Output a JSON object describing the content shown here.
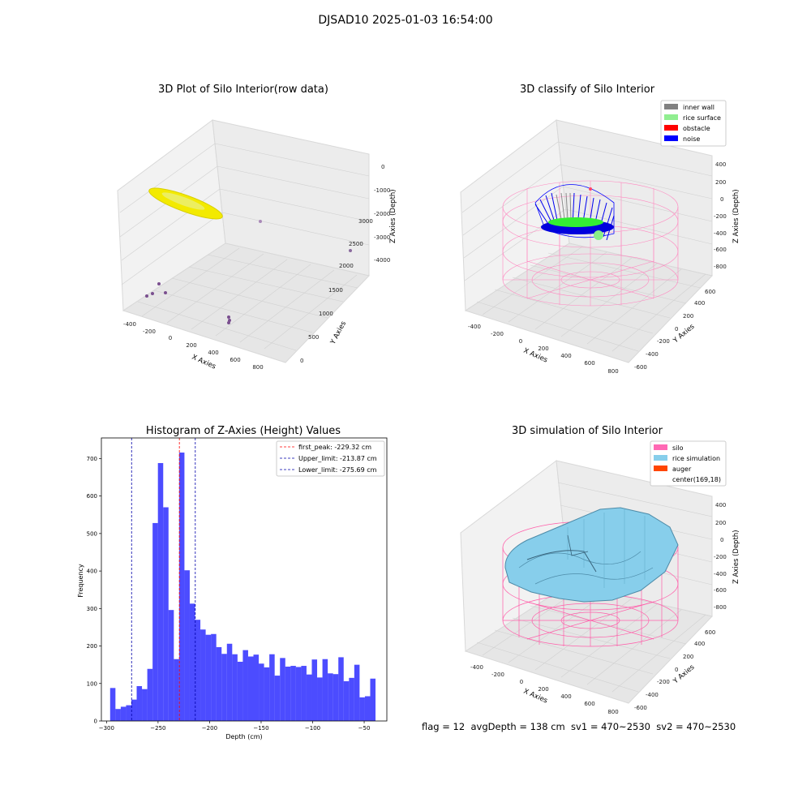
{
  "suptitle": "DJSAD10 2025-01-03 16:54:00",
  "footer": "flag = 12  avgDepth = 138 cm  sv1 = 470~2530  sv2 = 470~2530",
  "plots": {
    "raw": {
      "title": "3D Plot of Silo Interior(row data)",
      "xlabel": "X Axies",
      "ylabel": "Y Axies",
      "zlabel": "Z Axies (Depth)",
      "xticks": [
        "-400",
        "-200",
        "0",
        "200",
        "400",
        "600",
        "800"
      ],
      "yticks": [
        "0",
        "500",
        "1000",
        "1500",
        "2000",
        "2500",
        "3000"
      ],
      "zticks": [
        "0",
        "-1000",
        "-2000",
        "-3000",
        "-4000"
      ]
    },
    "classify": {
      "title": "3D classify of Silo Interior",
      "xlabel": "X Axies",
      "ylabel": "Y Axies",
      "zlabel": "Z Axies (Depth)",
      "xticks": [
        "-400",
        "-200",
        "0",
        "200",
        "400",
        "600",
        "800"
      ],
      "yticks": [
        "-600",
        "-400",
        "-200",
        "0",
        "200",
        "400",
        "600"
      ],
      "zticks": [
        "400",
        "200",
        "0",
        "-200",
        "-400",
        "-600",
        "-800"
      ],
      "legend": [
        {
          "label": "inner wall",
          "color": "#808080"
        },
        {
          "label": "rice surface",
          "color": "#90ee90"
        },
        {
          "label": "obstacle",
          "color": "#ff0000"
        },
        {
          "label": "noise",
          "color": "#0000ff"
        }
      ]
    },
    "simulation": {
      "title": "3D simulation of Silo Interior",
      "xlabel": "X Axies",
      "ylabel": "Y Axies",
      "zlabel": "Z Axies (Depth)",
      "xticks": [
        "-400",
        "-200",
        "0",
        "200",
        "400",
        "600",
        "800"
      ],
      "yticks": [
        "-600",
        "-400",
        "-200",
        "0",
        "200",
        "400",
        "600"
      ],
      "zticks": [
        "400",
        "200",
        "0",
        "-200",
        "-400",
        "-600",
        "-800"
      ],
      "legend": [
        {
          "label": "silo",
          "color": "#ff69b4"
        },
        {
          "label": "rice simulation",
          "color": "#87ceeb"
        },
        {
          "label": "auger",
          "color": "#ff4500"
        },
        {
          "label": "center(169,18)",
          "color": "none"
        }
      ]
    }
  },
  "chart_data": {
    "type": "bar",
    "title": "Histogram of Z-Axies (Height) Values",
    "xlabel": "Depth (cm)",
    "ylabel": "Frequency",
    "xlim": [
      -305,
      -28
    ],
    "ylim": [
      0,
      755
    ],
    "xticks": [
      -300,
      -250,
      -200,
      -150,
      -100,
      -50
    ],
    "yticks": [
      0,
      100,
      200,
      300,
      400,
      500,
      600,
      700
    ],
    "bar_color": "#0000ff",
    "bin_start": -296.5,
    "bin_width": 5.15,
    "values": [
      88,
      32,
      38,
      42,
      57,
      93,
      85,
      139,
      528,
      688,
      570,
      296,
      165,
      716,
      402,
      313,
      270,
      244,
      230,
      232,
      197,
      179,
      206,
      178,
      158,
      189,
      172,
      177,
      153,
      143,
      178,
      121,
      168,
      145,
      147,
      144,
      147,
      124,
      164,
      116,
      165,
      127,
      125,
      170,
      106,
      115,
      150,
      63,
      66,
      113
    ],
    "lines": [
      {
        "x": -229.32,
        "color": "#ff0000",
        "label": "first_peak: -229.32 cm"
      },
      {
        "x": -213.87,
        "color": "#0000aa",
        "label": "Upper_limit: -213.87 cm"
      },
      {
        "x": -275.69,
        "color": "#0000aa",
        "label": "Lower_limit: -275.69 cm"
      }
    ]
  }
}
